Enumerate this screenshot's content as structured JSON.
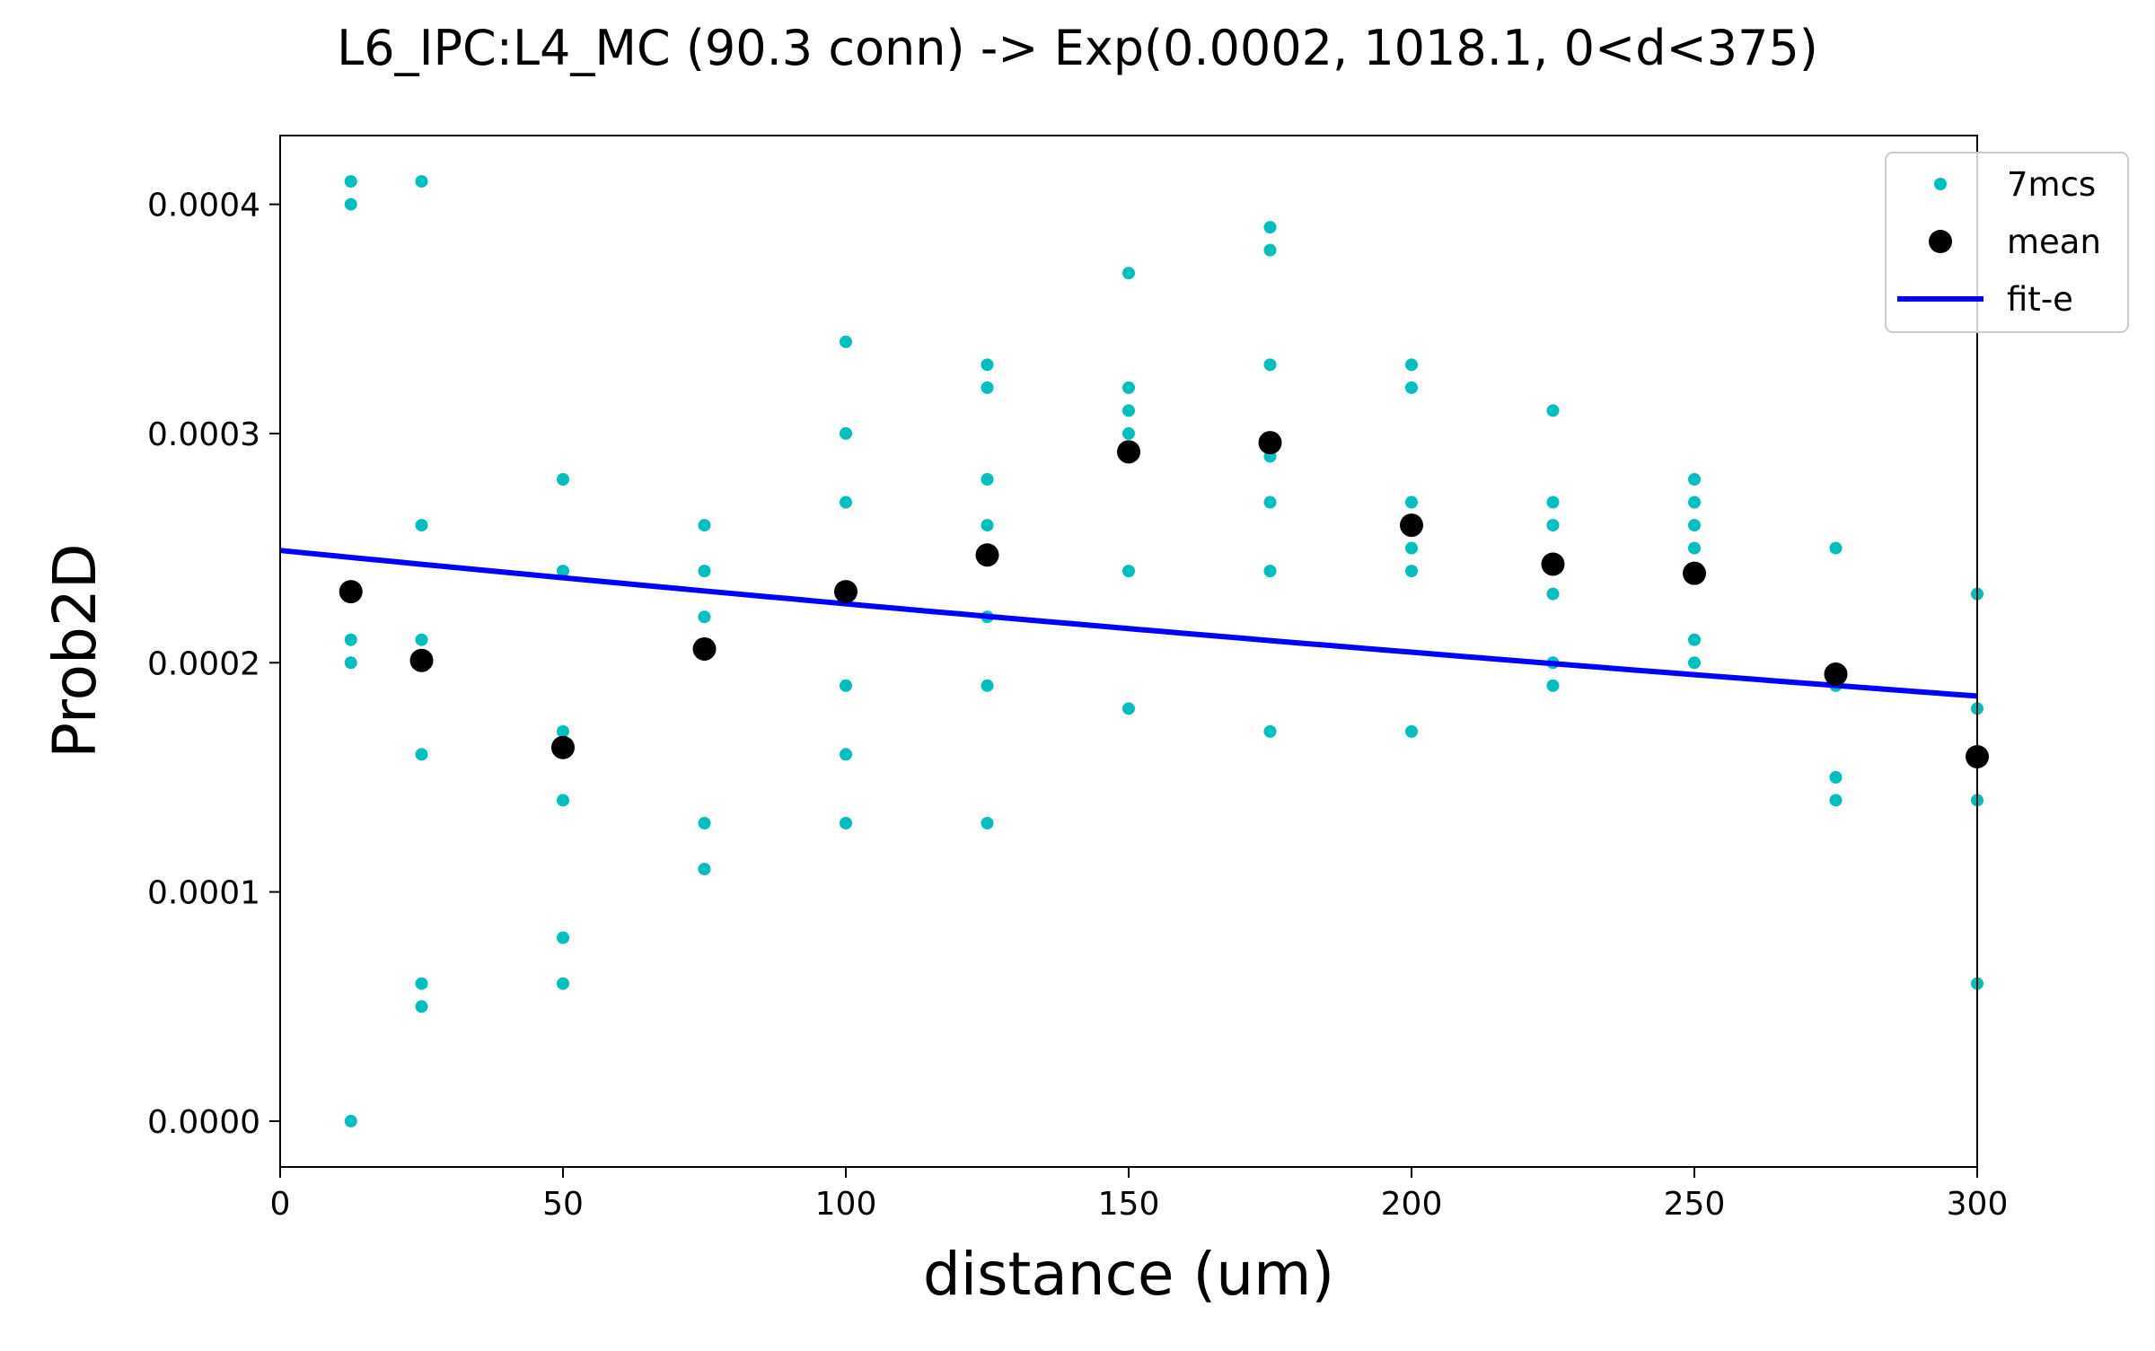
{
  "chart_data": {
    "type": "scatter",
    "title": "L6_IPC:L4_MC (90.3 conn) -> Exp(0.0002, 1018.1, 0<d<375)",
    "xlabel": "distance (um)",
    "ylabel": "Prob2D",
    "xlim": [
      0,
      300
    ],
    "ylim": [
      -2e-05,
      0.00043
    ],
    "xticks": [
      0,
      50,
      100,
      150,
      200,
      250,
      300
    ],
    "xtick_labels": [
      "0",
      "50",
      "100",
      "150",
      "200",
      "250",
      "300"
    ],
    "yticks": [
      0.0,
      0.0001,
      0.0002,
      0.0003,
      0.0004
    ],
    "ytick_labels": [
      "0.0000",
      "0.0001",
      "0.0002",
      "0.0003",
      "0.0004"
    ],
    "grid": false,
    "legend_position": "top-right",
    "series": [
      {
        "name": "7mcs",
        "kind": "points",
        "color": "#00BFBF",
        "points": [
          [
            12.5,
            0.00041
          ],
          [
            12.5,
            0.0004
          ],
          [
            12.5,
            0.00021
          ],
          [
            12.5,
            0.0002
          ],
          [
            12.5,
            0.0
          ],
          [
            25,
            0.00041
          ],
          [
            25,
            0.00026
          ],
          [
            25,
            0.00021
          ],
          [
            25,
            0.00016
          ],
          [
            25,
            6e-05
          ],
          [
            25,
            5e-05
          ],
          [
            50,
            0.00028
          ],
          [
            50,
            0.00024
          ],
          [
            50,
            0.00017
          ],
          [
            50,
            0.00014
          ],
          [
            50,
            8e-05
          ],
          [
            50,
            6e-05
          ],
          [
            75,
            0.00026
          ],
          [
            75,
            0.00024
          ],
          [
            75,
            0.00022
          ],
          [
            75,
            0.00013
          ],
          [
            75,
            0.00011
          ],
          [
            100,
            0.00034
          ],
          [
            100,
            0.0003
          ],
          [
            100,
            0.00027
          ],
          [
            100,
            0.00019
          ],
          [
            100,
            0.00016
          ],
          [
            100,
            0.00013
          ],
          [
            125,
            0.00033
          ],
          [
            125,
            0.00032
          ],
          [
            125,
            0.00028
          ],
          [
            125,
            0.00026
          ],
          [
            125,
            0.00022
          ],
          [
            125,
            0.00019
          ],
          [
            125,
            0.00013
          ],
          [
            150,
            0.00037
          ],
          [
            150,
            0.00032
          ],
          [
            150,
            0.00031
          ],
          [
            150,
            0.0003
          ],
          [
            150,
            0.00024
          ],
          [
            150,
            0.00018
          ],
          [
            175,
            0.00039
          ],
          [
            175,
            0.00038
          ],
          [
            175,
            0.00033
          ],
          [
            175,
            0.00029
          ],
          [
            175,
            0.00027
          ],
          [
            175,
            0.00024
          ],
          [
            175,
            0.00017
          ],
          [
            200,
            0.00033
          ],
          [
            200,
            0.00032
          ],
          [
            200,
            0.00027
          ],
          [
            200,
            0.00025
          ],
          [
            200,
            0.00024
          ],
          [
            200,
            0.00017
          ],
          [
            225,
            0.00031
          ],
          [
            225,
            0.00027
          ],
          [
            225,
            0.00026
          ],
          [
            225,
            0.00023
          ],
          [
            225,
            0.0002
          ],
          [
            225,
            0.00019
          ],
          [
            250,
            0.00028
          ],
          [
            250,
            0.00027
          ],
          [
            250,
            0.00026
          ],
          [
            250,
            0.00025
          ],
          [
            250,
            0.00021
          ],
          [
            250,
            0.0002
          ],
          [
            275,
            0.00025
          ],
          [
            275,
            0.00019
          ],
          [
            275,
            0.00015
          ],
          [
            275,
            0.00014
          ],
          [
            300,
            0.00023
          ],
          [
            300,
            0.00018
          ],
          [
            300,
            0.00014
          ],
          [
            300,
            6e-05
          ]
        ]
      },
      {
        "name": "mean",
        "kind": "points",
        "color": "#000000",
        "points": [
          [
            12.5,
            0.000231
          ],
          [
            25,
            0.000201
          ],
          [
            50,
            0.000163
          ],
          [
            75,
            0.000206
          ],
          [
            100,
            0.000231
          ],
          [
            125,
            0.000247
          ],
          [
            150,
            0.000292
          ],
          [
            175,
            0.000296
          ],
          [
            200,
            0.00026
          ],
          [
            225,
            0.000243
          ],
          [
            250,
            0.000239
          ],
          [
            275,
            0.000195
          ],
          [
            300,
            0.000159
          ]
        ]
      },
      {
        "name": "fit-e",
        "kind": "line",
        "color": "#0000FF",
        "amplitude": 0.000249,
        "scale": 1018.1,
        "x_range": [
          0,
          300
        ]
      }
    ]
  }
}
